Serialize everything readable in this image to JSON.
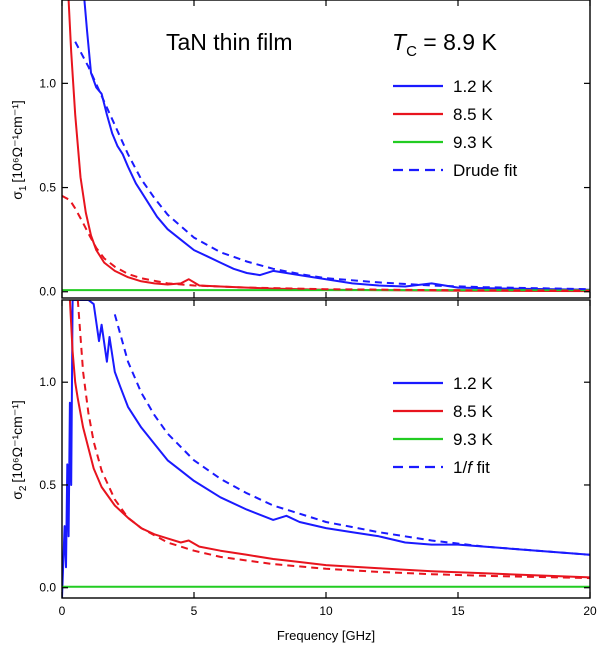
{
  "annotations": {
    "sample": "TaN thin film",
    "tc_symbol": "T",
    "tc_subscript": "C",
    "tc_value": " = 8.9 K"
  },
  "colors": {
    "t_1_2K": "#1a1aff",
    "t_8_5K": "#e8141e",
    "t_9_3K": "#22cc22",
    "axis": "#000000"
  },
  "chart_data": [
    {
      "type": "line",
      "panel": "top",
      "ylabel_symbol": "σ",
      "ylabel_subscript": "1",
      "ylabel_units": "[10⁶Ω⁻¹cm⁻¹]",
      "xlim": [
        0,
        20
      ],
      "ylim": [
        -0.03,
        1.4
      ],
      "yticks": [
        "0.0",
        "0.5",
        "1.0"
      ],
      "ytick_values": [
        0.0,
        0.5,
        1.0
      ],
      "legend": [
        "1.2 K",
        "8.5 K",
        "9.3 K",
        "Drude fit"
      ],
      "legend_position": "right",
      "series": [
        {
          "name": "1.2 K",
          "color": "#1a1aff",
          "style": "solid",
          "x": [
            0.85,
            0.95,
            1.1,
            1.3,
            1.5,
            1.7,
            1.9,
            2.1,
            2.3,
            2.5,
            2.8,
            3.0,
            3.3,
            3.6,
            4.0,
            4.5,
            5.0,
            5.5,
            6.0,
            6.5,
            7.0,
            7.5,
            8.0,
            8.5,
            9.0,
            10.0,
            11.0,
            12.0,
            13.0,
            14.0,
            15.0,
            17.0,
            20.0
          ],
          "y": [
            1.4,
            1.25,
            1.05,
            0.98,
            0.95,
            0.85,
            0.76,
            0.7,
            0.66,
            0.6,
            0.52,
            0.48,
            0.42,
            0.36,
            0.3,
            0.25,
            0.2,
            0.17,
            0.14,
            0.11,
            0.09,
            0.08,
            0.1,
            0.09,
            0.08,
            0.06,
            0.04,
            0.03,
            0.025,
            0.04,
            0.02,
            0.015,
            0.01
          ]
        },
        {
          "name": "8.5 K",
          "color": "#e8141e",
          "style": "solid",
          "x": [
            0.25,
            0.35,
            0.5,
            0.7,
            0.9,
            1.1,
            1.3,
            1.6,
            2.0,
            2.5,
            3.0,
            3.5,
            4.0,
            4.5,
            4.8,
            5.2,
            6.0,
            7.0,
            8.0,
            10.0,
            12.0,
            15.0,
            20.0
          ],
          "y": [
            1.4,
            1.15,
            0.85,
            0.55,
            0.38,
            0.27,
            0.2,
            0.14,
            0.1,
            0.07,
            0.05,
            0.04,
            0.035,
            0.04,
            0.06,
            0.03,
            0.025,
            0.02,
            0.015,
            0.01,
            0.008,
            0.005,
            0.003
          ]
        },
        {
          "name": "9.3 K",
          "color": "#22cc22",
          "style": "solid",
          "x": [
            0,
            20
          ],
          "y": [
            0.008,
            0.008
          ]
        },
        {
          "name": "Drude fit",
          "color": "#1a1aff",
          "style": "dashed",
          "x": [
            0.5,
            1.0,
            1.5,
            2.0,
            2.5,
            3.0,
            3.5,
            4.0,
            5.0,
            6.0,
            7.0,
            8.0,
            9.0,
            10.0,
            12.0,
            14.0,
            16.0,
            20.0
          ],
          "y": [
            1.2,
            1.08,
            0.94,
            0.8,
            0.66,
            0.54,
            0.45,
            0.37,
            0.26,
            0.19,
            0.145,
            0.11,
            0.085,
            0.065,
            0.045,
            0.03,
            0.022,
            0.012
          ]
        },
        {
          "name": "",
          "color": "#e8141e",
          "style": "dashed",
          "x": [
            0.0,
            0.3,
            0.5,
            0.8,
            1.0,
            1.3,
            1.6,
            2.0,
            2.5,
            3.0,
            4.0,
            5.0,
            7.0,
            10.0,
            15.0,
            20.0
          ],
          "y": [
            0.46,
            0.44,
            0.4,
            0.33,
            0.28,
            0.21,
            0.16,
            0.12,
            0.085,
            0.065,
            0.04,
            0.03,
            0.02,
            0.012,
            0.007,
            0.005
          ]
        }
      ]
    },
    {
      "type": "line",
      "panel": "bottom",
      "ylabel_symbol": "σ",
      "ylabel_subscript": "2",
      "ylabel_units": "[10⁶Ω⁻¹cm⁻¹]",
      "xlabel": "Frequency [GHz]",
      "xlim": [
        0,
        20
      ],
      "ylim": [
        -0.05,
        1.4
      ],
      "xticks": [
        "0",
        "5",
        "10",
        "15",
        "20"
      ],
      "xtick_values": [
        0,
        5,
        10,
        15,
        20
      ],
      "yticks": [
        "0.0",
        "0.5",
        "1.0"
      ],
      "ytick_values": [
        0.0,
        0.5,
        1.0
      ],
      "legend": [
        "1.2 K",
        "8.5 K",
        "9.3 K",
        "1/f fit"
      ],
      "legend_position": "right",
      "series": [
        {
          "name": "1.2 K",
          "color": "#1a1aff",
          "style": "solid",
          "x": [
            0.0,
            0.1,
            0.15,
            0.2,
            0.25,
            0.3,
            0.35,
            0.4,
            0.5,
            0.6,
            0.7,
            0.8,
            0.9,
            1.0,
            1.2,
            1.4,
            1.5,
            1.7,
            1.8,
            2.0,
            2.2,
            2.5,
            3.0,
            3.5,
            4.0,
            4.5,
            5.0,
            6.0,
            7.0,
            8.0,
            8.5,
            9.0,
            10.0,
            11.0,
            12.0,
            13.0,
            14.0,
            15.0,
            16.0,
            17.0,
            18.0,
            19.0,
            20.0
          ],
          "y": [
            -0.05,
            0.3,
            0.1,
            0.6,
            0.25,
            0.9,
            0.5,
            1.4,
            1.4,
            1.4,
            1.4,
            1.4,
            1.4,
            1.4,
            1.38,
            1.2,
            1.28,
            1.1,
            1.22,
            1.05,
            0.98,
            0.88,
            0.78,
            0.7,
            0.62,
            0.57,
            0.52,
            0.44,
            0.38,
            0.33,
            0.35,
            0.32,
            0.29,
            0.27,
            0.25,
            0.22,
            0.21,
            0.21,
            0.2,
            0.19,
            0.18,
            0.17,
            0.16
          ]
        },
        {
          "name": "8.5 K",
          "color": "#e8141e",
          "style": "solid",
          "x": [
            0.3,
            0.4,
            0.5,
            0.6,
            0.8,
            1.0,
            1.2,
            1.5,
            2.0,
            2.5,
            3.0,
            3.5,
            4.0,
            4.5,
            4.8,
            5.2,
            6.0,
            7.0,
            8.0,
            9.0,
            10.0,
            12.0,
            14.0,
            16.0,
            18.0,
            20.0
          ],
          "y": [
            1.4,
            1.15,
            1.0,
            0.92,
            0.78,
            0.68,
            0.58,
            0.49,
            0.4,
            0.34,
            0.29,
            0.26,
            0.24,
            0.22,
            0.23,
            0.2,
            0.18,
            0.16,
            0.14,
            0.125,
            0.11,
            0.095,
            0.08,
            0.07,
            0.06,
            0.05
          ]
        },
        {
          "name": "9.3 K",
          "color": "#22cc22",
          "style": "solid",
          "x": [
            0,
            20
          ],
          "y": [
            0.005,
            0.005
          ]
        },
        {
          "name": "1/f fit",
          "color": "#1a1aff",
          "style": "dashed",
          "x": [
            2.0,
            2.5,
            3.0,
            3.5,
            4.0,
            5.0,
            6.0,
            7.0,
            8.0,
            9.0,
            10.0,
            12.0,
            14.0,
            16.0,
            18.0,
            20.0
          ],
          "y": [
            1.33,
            1.1,
            0.95,
            0.84,
            0.75,
            0.62,
            0.53,
            0.46,
            0.4,
            0.36,
            0.32,
            0.27,
            0.23,
            0.2,
            0.18,
            0.16
          ]
        },
        {
          "name": "",
          "color": "#e8141e",
          "style": "dashed",
          "x": [
            0.6,
            0.8,
            1.0,
            1.2,
            1.5,
            2.0,
            2.5,
            3.0,
            4.0,
            5.0,
            6.0,
            8.0,
            10.0,
            12.0,
            14.0,
            16.0,
            18.0,
            20.0
          ],
          "y": [
            1.4,
            1.05,
            0.85,
            0.71,
            0.57,
            0.43,
            0.34,
            0.29,
            0.22,
            0.18,
            0.15,
            0.115,
            0.092,
            0.077,
            0.066,
            0.058,
            0.052,
            0.047
          ]
        }
      ]
    }
  ]
}
